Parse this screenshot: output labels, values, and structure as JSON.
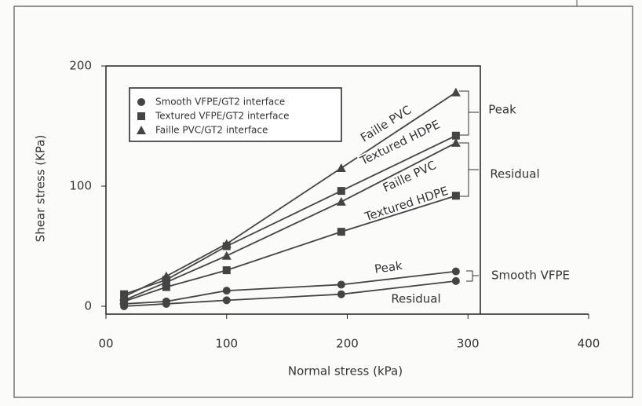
{
  "chart_data": {
    "type": "line",
    "xlabel": "Normal stress (kPa)",
    "ylabel": "Shear stress (KPa)",
    "xlim": [
      0,
      400
    ],
    "xticks": [
      {
        "value": 0,
        "label": "00"
      },
      100,
      200,
      300,
      400
    ],
    "ylim": [
      0,
      200
    ],
    "yticks": [
      0,
      100,
      200
    ],
    "series": [
      {
        "name": "Smooth VFPE/GT2 interface",
        "marker": "circle",
        "color": "#444444",
        "x": [
          15,
          50,
          100,
          195,
          290
        ],
        "peak": [
          2,
          4,
          13,
          18,
          29
        ],
        "residual": [
          0,
          2,
          5,
          10,
          21
        ]
      },
      {
        "name": "Textured VFPE/GT2 interface",
        "marker": "square",
        "color": "#444444",
        "x": [
          15,
          50,
          100,
          195,
          290
        ],
        "peak": [
          10,
          22,
          50,
          96,
          142
        ],
        "residual": [
          4,
          16,
          30,
          62,
          92
        ]
      },
      {
        "name": "Faille PVC/GT2 interface",
        "marker": "triangle",
        "color": "#444444",
        "x": [
          15,
          50,
          100,
          195,
          290
        ],
        "peak": [
          8,
          25,
          52,
          115,
          178
        ],
        "residual": [
          5,
          20,
          42,
          87,
          136
        ]
      }
    ],
    "annotations": [
      "Faille PVC",
      "Textured HDPE",
      "Faille PVC",
      "Textured HDPE",
      "Peak",
      "Residual",
      "Peak",
      "Smooth VFPE",
      "Residual"
    ]
  }
}
